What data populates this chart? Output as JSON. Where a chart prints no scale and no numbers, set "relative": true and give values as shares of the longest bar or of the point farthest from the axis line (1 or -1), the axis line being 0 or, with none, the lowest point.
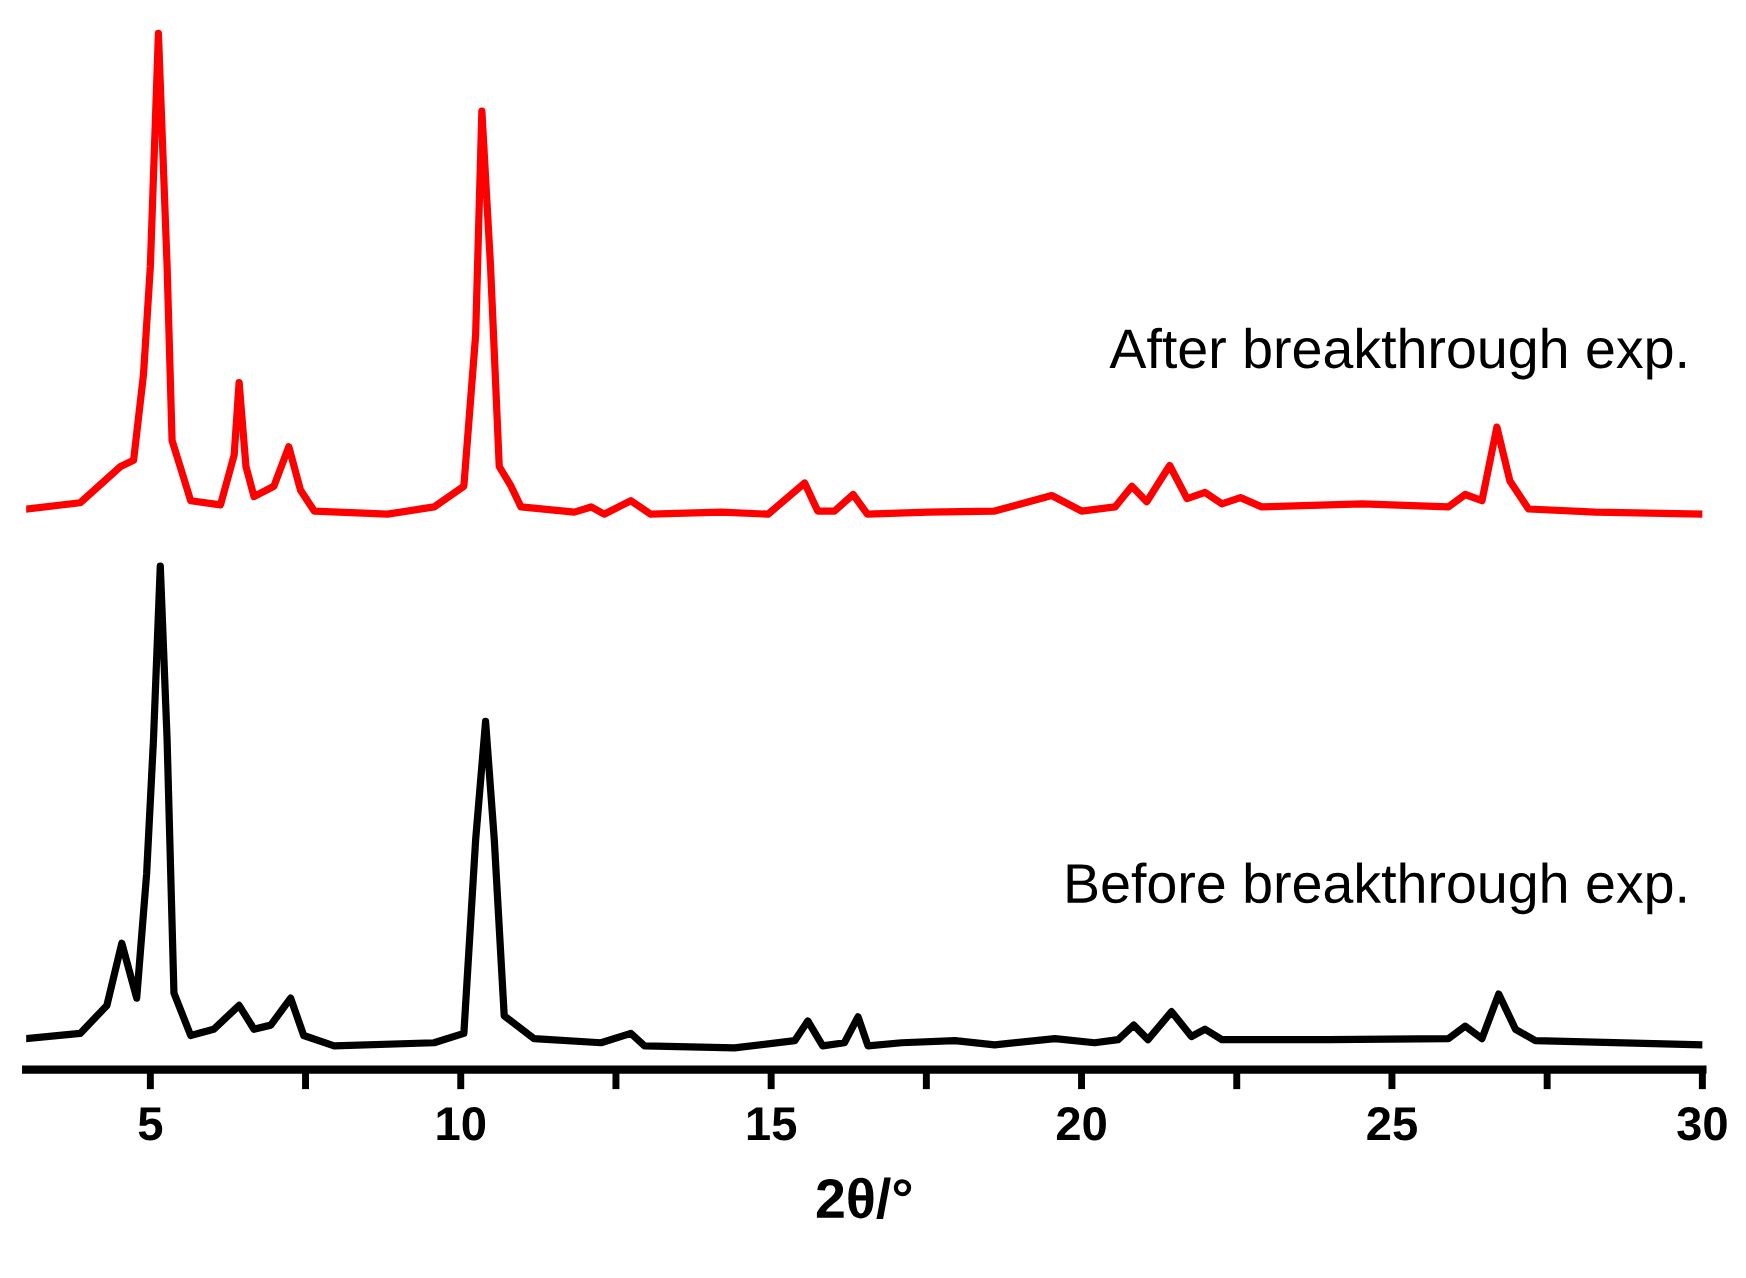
{
  "chart_data": {
    "type": "line",
    "xlabel": "2θ/°",
    "relative": true,
    "xlim": [
      3,
      30
    ],
    "xticks": [
      5,
      {
        "value": 7.5,
        "label": null
      },
      10,
      {
        "value": 12.5,
        "label": null
      },
      15,
      {
        "value": 17.5,
        "label": null
      },
      20,
      {
        "value": 22.5,
        "label": null
      },
      25,
      {
        "value": 27.5,
        "label": null
      },
      30
    ],
    "grid": false,
    "legend": false,
    "marker": "none",
    "line_style": "solid",
    "series": [
      {
        "name": "After breakthrough exp.",
        "color": "#ff0000",
        "x": [
          3.0,
          3.87,
          4.52,
          4.73,
          4.89,
          5.0,
          5.13,
          5.27,
          5.35,
          5.48,
          5.65,
          6.13,
          6.35,
          6.43,
          6.54,
          6.67,
          6.99,
          7.23,
          7.42,
          7.64,
          8.82,
          9.57,
          10.05,
          10.24,
          10.34,
          10.48,
          10.62,
          10.81,
          10.97,
          11.83,
          12.1,
          12.31,
          12.74,
          13.06,
          14.19,
          14.95,
          15.54,
          15.75,
          16.02,
          16.32,
          16.55,
          17.53,
          18.6,
          19.52,
          20.0,
          20.54,
          20.81,
          21.05,
          21.42,
          21.7,
          21.99,
          22.26,
          22.56,
          22.9,
          24.52,
          25.91,
          26.18,
          26.45,
          26.69,
          26.9,
          27.2,
          28.28,
          30.0
        ],
        "values": [
          0.541,
          0.547,
          0.582,
          0.588,
          0.671,
          0.775,
          1.0,
          0.775,
          0.607,
          0.582,
          0.549,
          0.545,
          0.593,
          0.663,
          0.582,
          0.553,
          0.563,
          0.601,
          0.559,
          0.539,
          0.536,
          0.543,
          0.563,
          0.709,
          0.925,
          0.775,
          0.582,
          0.563,
          0.543,
          0.538,
          0.543,
          0.536,
          0.549,
          0.536,
          0.538,
          0.536,
          0.566,
          0.539,
          0.539,
          0.555,
          0.536,
          0.538,
          0.539,
          0.554,
          0.539,
          0.543,
          0.563,
          0.548,
          0.583,
          0.551,
          0.557,
          0.546,
          0.552,
          0.543,
          0.546,
          0.543,
          0.555,
          0.549,
          0.62,
          0.568,
          0.541,
          0.538,
          0.536
        ]
      },
      {
        "name": "Before breakthrough exp.",
        "color": "#000000",
        "x": [
          3.0,
          3.87,
          4.3,
          4.54,
          4.78,
          4.94,
          5.05,
          5.16,
          5.27,
          5.38,
          5.65,
          6.02,
          6.43,
          6.67,
          6.94,
          7.26,
          7.47,
          7.96,
          9.57,
          10.05,
          10.24,
          10.4,
          10.54,
          10.7,
          11.18,
          12.26,
          12.74,
          12.96,
          14.41,
          15.38,
          15.59,
          15.83,
          16.18,
          16.4,
          16.56,
          17.1,
          17.96,
          18.6,
          19.57,
          20.21,
          20.59,
          20.84,
          21.07,
          21.45,
          21.77,
          21.99,
          22.26,
          23.98,
          25.91,
          26.18,
          26.45,
          26.72,
          26.99,
          27.31,
          30.0
        ],
        "values": [
          0.03,
          0.035,
          0.062,
          0.122,
          0.069,
          0.189,
          0.318,
          0.486,
          0.318,
          0.074,
          0.033,
          0.039,
          0.062,
          0.039,
          0.043,
          0.069,
          0.033,
          0.023,
          0.026,
          0.035,
          0.222,
          0.336,
          0.222,
          0.052,
          0.03,
          0.026,
          0.035,
          0.023,
          0.021,
          0.028,
          0.047,
          0.023,
          0.026,
          0.051,
          0.023,
          0.026,
          0.028,
          0.024,
          0.03,
          0.026,
          0.029,
          0.043,
          0.029,
          0.056,
          0.032,
          0.039,
          0.029,
          0.029,
          0.03,
          0.042,
          0.03,
          0.073,
          0.039,
          0.028,
          0.024
        ]
      }
    ]
  }
}
